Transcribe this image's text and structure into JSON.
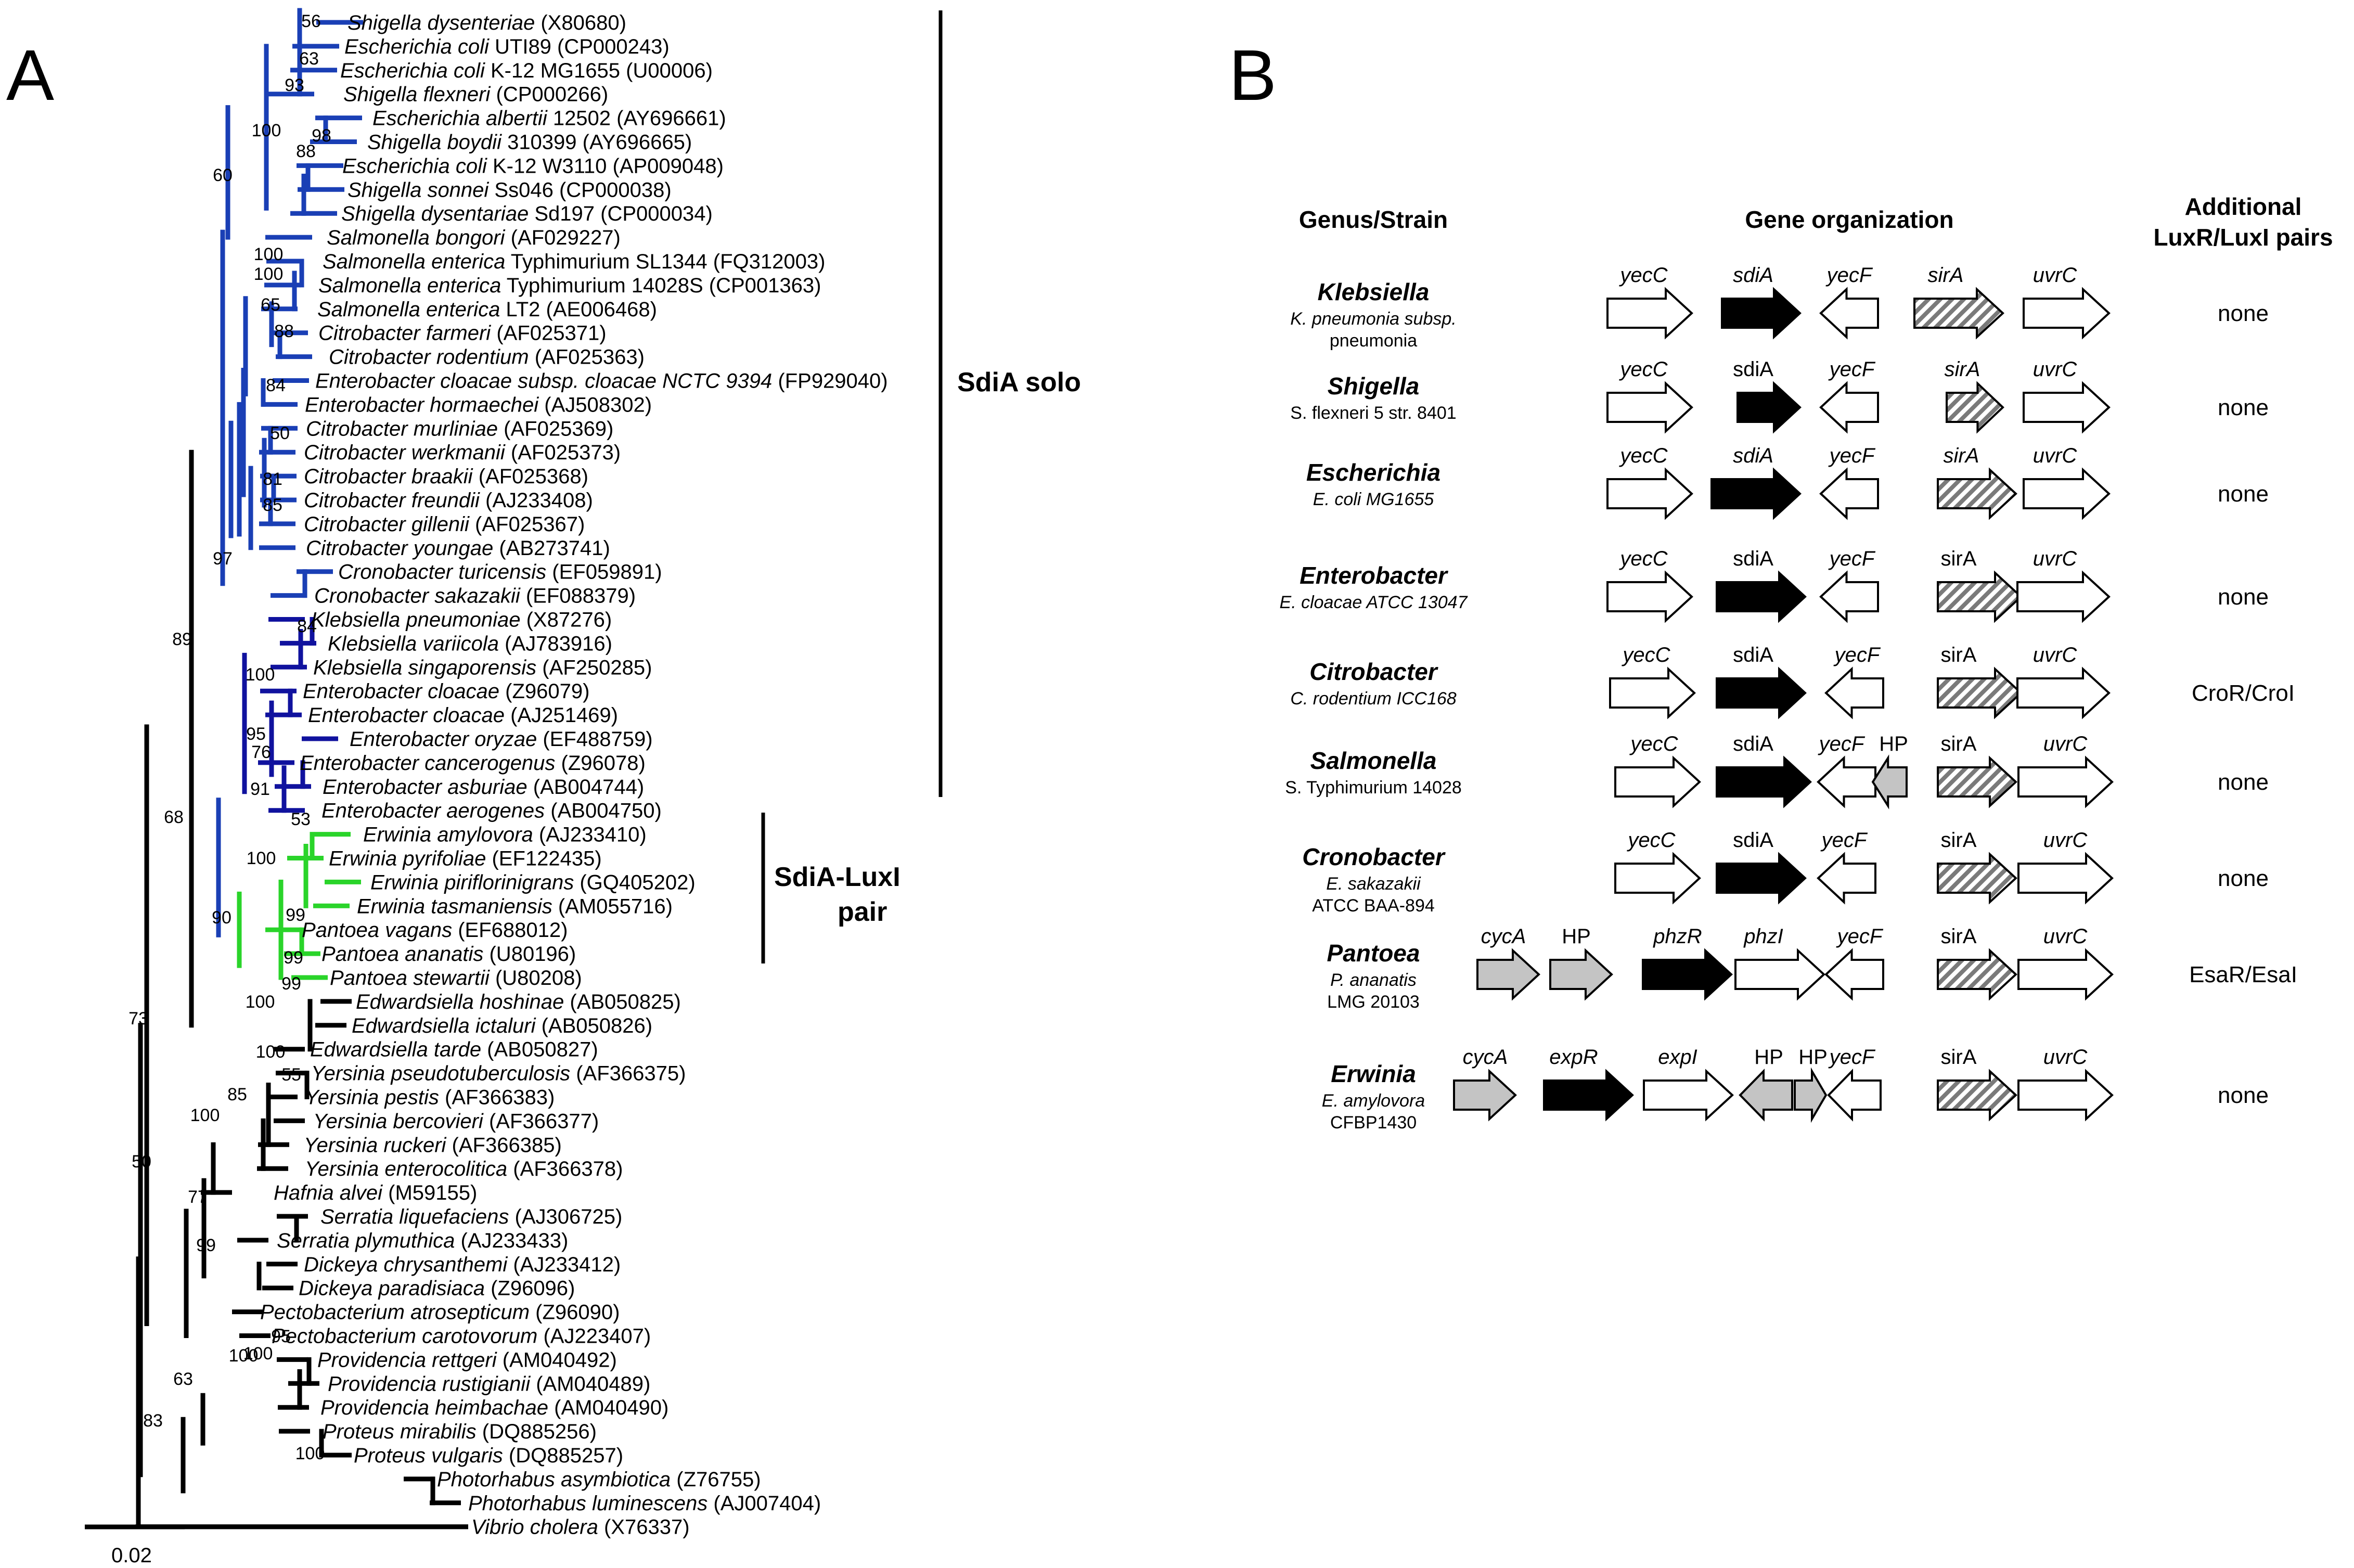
{
  "panelA": {
    "label": "A",
    "scale_label": "0.02",
    "taxa": [
      {
        "genus": "Shigella dysenteriae",
        "rest": "(X80680)"
      },
      {
        "genus": "Escherichia coli",
        "rest": "UTI89 (CP000243)"
      },
      {
        "genus": "Escherichia coli",
        "rest": "K-12 MG1655 (U00006)"
      },
      {
        "genus": "Shigella flexneri",
        "rest": "(CP000266)"
      },
      {
        "genus": "Escherichia albertii",
        "rest": "12502 (AY696661)"
      },
      {
        "genus": "Shigella boydii",
        "rest": "310399 (AY696665)"
      },
      {
        "genus": "Escherichia coli",
        "rest": "K-12 W3110 (AP009048)"
      },
      {
        "genus": "Shigella sonnei",
        "rest": "Ss046 (CP000038)"
      },
      {
        "genus": "Shigella dysentariae",
        "rest": "Sd197 (CP000034)"
      },
      {
        "genus": "Salmonella bongori",
        "rest": "(AF029227)"
      },
      {
        "genus": "Salmonella enterica",
        "rest": "Typhimurium SL1344 (FQ312003)"
      },
      {
        "genus": "Salmonella enterica",
        "rest": "Typhimurium 14028S (CP001363)"
      },
      {
        "genus": "Salmonella enterica",
        "rest": "LT2 (AE006468)"
      },
      {
        "genus": "Citrobacter farmeri",
        "rest": "(AF025371)"
      },
      {
        "genus": "Citrobacter rodentium",
        "rest": "(AF025363)"
      },
      {
        "genus": "Enterobacter cloacae subsp. cloacae NCTC 9394",
        "rest": "(FP929040)"
      },
      {
        "genus": "Enterobacter hormaechei",
        "rest": "(AJ508302)"
      },
      {
        "genus": "Citrobacter murliniae",
        "rest": "(AF025369)"
      },
      {
        "genus": "Citrobacter werkmanii",
        "rest": "(AF025373)"
      },
      {
        "genus": "Citrobacter braakii",
        "rest": "(AF025368)"
      },
      {
        "genus": "Citrobacter freundii",
        "rest": "(AJ233408)"
      },
      {
        "genus": "Citrobacter gillenii",
        "rest": "(AF025367)"
      },
      {
        "genus": "Citrobacter youngae",
        "rest": "(AB273741)"
      },
      {
        "genus": "Cronobacter turicensis",
        "rest": "(EF059891)"
      },
      {
        "genus": "Cronobacter sakazakii",
        "rest": "(EF088379)"
      },
      {
        "genus": "Klebsiella pneumoniae",
        "rest": "(X87276)"
      },
      {
        "genus": "Klebsiella variicola",
        "rest": "(AJ783916)"
      },
      {
        "genus": "Klebsiella singaporensis",
        "rest": "(AF250285)"
      },
      {
        "genus": "Enterobacter cloacae",
        "rest": "(Z96079)"
      },
      {
        "genus": "Enterobacter cloacae",
        "rest": "(AJ251469)"
      },
      {
        "genus": "Enterobacter oryzae",
        "rest": "(EF488759)"
      },
      {
        "genus": "Enterobacter cancerogenus",
        "rest": "(Z96078)"
      },
      {
        "genus": "Enterobacter asburiae",
        "rest": "(AB004744)"
      },
      {
        "genus": "Enterobacter aerogenes",
        "rest": "(AB004750)"
      },
      {
        "genus": "Erwinia amylovora",
        "rest": "(AJ233410)"
      },
      {
        "genus": "Erwinia pyrifoliae",
        "rest": "(EF122435)"
      },
      {
        "genus": "Erwinia piriflorinigrans",
        "rest": "(GQ405202)"
      },
      {
        "genus": "Erwinia tasmaniensis",
        "rest": "(AM055716)"
      },
      {
        "genus": "Pantoea vagans",
        "rest": "(EF688012)"
      },
      {
        "genus": "Pantoea ananatis",
        "rest": "(U80196)"
      },
      {
        "genus": "Pantoea stewartii",
        "rest": "(U80208)"
      },
      {
        "genus": "Edwardsiella hoshinae",
        "rest": "(AB050825)"
      },
      {
        "genus": "Edwardsiella ictaluri",
        "rest": "(AB050826)"
      },
      {
        "genus": "Edwardsiella tarde",
        "rest": "(AB050827)"
      },
      {
        "genus": "Yersinia pseudotuberculosis",
        "rest": "(AF366375)"
      },
      {
        "genus": "Yersinia pestis",
        "rest": "(AF366383)"
      },
      {
        "genus": "Yersinia bercovieri",
        "rest": "(AF366377)"
      },
      {
        "genus": "Yersinia ruckeri",
        "rest": "(AF366385)"
      },
      {
        "genus": "Yersinia enterocolitica",
        "rest": "(AF366378)"
      },
      {
        "genus": "Hafnia alvei",
        "rest": "(M59155)"
      },
      {
        "genus": "Serratia liquefaciens",
        "rest": "(AJ306725)"
      },
      {
        "genus": "Serratia plymuthica",
        "rest": "(AJ233433)"
      },
      {
        "genus": "Dickeya chrysanthemi",
        "rest": "(AJ233412)"
      },
      {
        "genus": "Dickeya paradisiaca",
        "rest": "(Z96096)"
      },
      {
        "genus": "Pectobacterium atrosepticum",
        "rest": "(Z96090)"
      },
      {
        "genus": "Pectobacterium carotovorum",
        "rest": "(AJ223407)"
      },
      {
        "genus": "Providencia rettgeri",
        "rest": "(AM040492)"
      },
      {
        "genus": "Providencia rustigianii",
        "rest": "(AM040489)"
      },
      {
        "genus": "Providencia heimbachae",
        "rest": "(AM040490)"
      },
      {
        "genus": "Proteus mirabilis",
        "rest": "(DQ885256)"
      },
      {
        "genus": "Proteus vulgaris",
        "rest": "(DQ885257)"
      },
      {
        "genus": "Photorhabus asymbiotica",
        "rest": "(Z76755)"
      },
      {
        "genus": "Photorhabus luminescens",
        "rest": "(AJ007404)"
      },
      {
        "genus": "Vibrio cholera",
        "rest": "(X76337)"
      }
    ],
    "bootstraps": [
      "56",
      "63",
      "93",
      "100",
      "88",
      "98",
      "60",
      "100",
      "100",
      "65",
      "88",
      "84",
      "50",
      "81",
      "85",
      "97",
      "84",
      "100",
      "95",
      "76",
      "91",
      "89",
      "68",
      "53",
      "100",
      "99",
      "90",
      "99",
      "99",
      "100",
      "73",
      "100",
      "55",
      "85",
      "100",
      "50",
      "77",
      "99",
      "100",
      "95",
      "100",
      "63",
      "83",
      "100"
    ],
    "bracket_labels": {
      "sdia_solo": "SdiA solo",
      "pair_line1": "SdiA-LuxI",
      "pair_line2": "pair"
    },
    "clade_colors": {
      "solo": "#1a3fb5",
      "klebsiella": "#10129e",
      "pair": "#2ad42a",
      "other": "#000000"
    }
  },
  "panelB": {
    "label": "B",
    "headers": {
      "genus": "Genus/Strain",
      "gene": "Gene organization",
      "additional_1": "Additional",
      "additional_2": "LuxR/LuxI pairs"
    },
    "rows": [
      {
        "genus": "Klebsiella",
        "strain": [
          "K. pneumonia subsp.",
          "pneumonia"
        ],
        "pairs": "none"
      },
      {
        "genus": "Shigella",
        "strain": [
          "S. flexneri 5 str. 8401"
        ],
        "pairs": "none"
      },
      {
        "genus": "Escherichia",
        "strain": [
          "E. coli MG1655"
        ],
        "pairs": "none"
      },
      {
        "genus": "Enterobacter",
        "strain": [
          "E. cloacae ATCC 13047"
        ],
        "pairs": "none"
      },
      {
        "genus": "Citrobacter",
        "strain": [
          "C. rodentium ICC168"
        ],
        "pairs": "CroR/CroI"
      },
      {
        "genus": "Salmonella",
        "strain": [
          "S. Typhimurium 14028"
        ],
        "pairs": "none"
      },
      {
        "genus": "Cronobacter",
        "strain": [
          "E. sakazakii",
          "ATCC BAA-894"
        ],
        "pairs": "none"
      },
      {
        "genus": "Pantoea",
        "strain": [
          "P. ananatis",
          "LMG 20103"
        ],
        "pairs": "EsaR/EsaI"
      },
      {
        "genus": "Erwinia",
        "strain": [
          "E. amylovora",
          "CFBP1430"
        ],
        "pairs": "none"
      }
    ],
    "gene_names": {
      "yecC": "yecC",
      "sdiA": "sdiA",
      "yecF": "yecF",
      "sirA": "sirA",
      "uvrC": "uvrC",
      "HP": "HP",
      "cycA": "cycA",
      "phzR": "phzR",
      "phzI": "phzI",
      "expR": "expR",
      "expI": "expI"
    },
    "arrow_colors": {
      "white": "#ffffff",
      "black": "#000000",
      "gray": "#c4c4c4",
      "hatch": "#7a7a7a"
    }
  }
}
